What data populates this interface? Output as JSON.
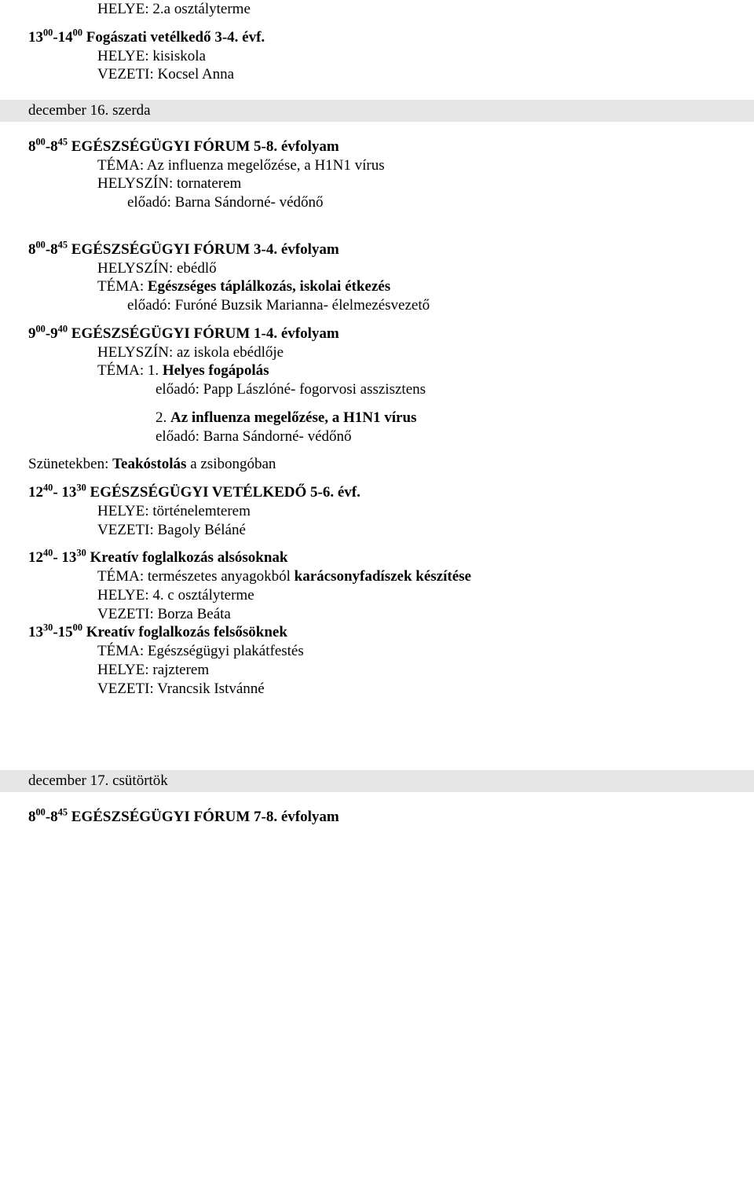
{
  "line1": "HELYE: 2.a osztályterme",
  "blockA": {
    "title_a": "13",
    "title_sup1": "00",
    "title_b": "-14",
    "title_sup2": "00",
    "title_c": " Fogászati vetélkedő 3-4. évf.",
    "l1": "HELYE: kisiskola",
    "l2": "VEZETI: Kocsel Anna"
  },
  "date1": "december 16. szerda",
  "blockB": {
    "t_a": "8",
    "t_s1": "00",
    "t_b": "-8",
    "t_s2": "45",
    "t_c": " EGÉSZSÉGÜGYI FÓRUM 5-8. évfolyam",
    "l1": "TÉMA: Az influenza megelőzése, a H1N1 vírus",
    "l2": "HELYSZÍN: tornaterem",
    "l3": "előadó: Barna Sándorné- védőnő"
  },
  "blockC": {
    "t_a": "8",
    "t_s1": "00",
    "t_b": "-8",
    "t_s2": "45",
    "t_c": " EGÉSZSÉGÜGYI FÓRUM 3-4. évfolyam",
    "l1": "HELYSZÍN: ebédlő",
    "l2a": "TÉMA: ",
    "l2b": "Egészséges táplálkozás, iskolai étkezés",
    "l3": "előadó: Furóné Buzsik Marianna- élelmezésvezető"
  },
  "blockD": {
    "t_a": "9",
    "t_s1": "00",
    "t_b": "-9",
    "t_s2": "40",
    "t_c": " EGÉSZSÉGÜGYI FÓRUM 1-4. évfolyam",
    "l1": "HELYSZÍN: az iskola ebédlője",
    "l2a": "TÉMA: 1. ",
    "l2b": "Helyes fogápolás",
    "l3": "előadó: Papp Lászlóné- fogorvosi asszisztens",
    "l4a": " 2. ",
    "l4b": "Az influenza megelőzése, a H1N1 vírus",
    "l5": "előadó: Barna Sándorné- védőnő"
  },
  "breaks_a": "Szünetekben: ",
  "breaks_b": "Teakóstolás",
  "breaks_c": " a zsibongóban",
  "blockE": {
    "t_a": "12",
    "t_s1": "40",
    "t_b": "- 13",
    "t_s2": "30",
    "t_c": " EGÉSZSÉGÜGYI VETÉLKEDŐ 5-6. évf.",
    "l1": "HELYE: történelemterem",
    "l2": "VEZETI: Bagoly Béláné"
  },
  "blockF": {
    "t_a": "12",
    "t_s1": "40",
    "t_b": "- 13",
    "t_s2": "30",
    "t_c": " Kreatív foglalkozás alsósoknak",
    "l1a": "TÉMA: természetes anyagokból ",
    "l1b": "karácsonyfadíszek készítése",
    "l2": "HELYE: 4. c osztályterme",
    "l3": "VEZETI: Borza Beáta"
  },
  "blockG": {
    "t_a": "13",
    "t_s1": "30",
    "t_b": "-15",
    "t_s2": "00",
    "t_c": " Kreatív foglalkozás felsősöknek",
    "l1": "TÉMA: Egészségügyi plakátfestés",
    "l2": "HELYE: rajzterem",
    "l3": "VEZETI: Vrancsik Istvánné"
  },
  "date2": "december 17. csütörtök",
  "blockH": {
    "t_a": "8",
    "t_s1": "00",
    "t_b": "-8",
    "t_s2": "45",
    "t_c": " EGÉSZSÉGÜGYI FÓRUM  7-8. évfolyam"
  }
}
